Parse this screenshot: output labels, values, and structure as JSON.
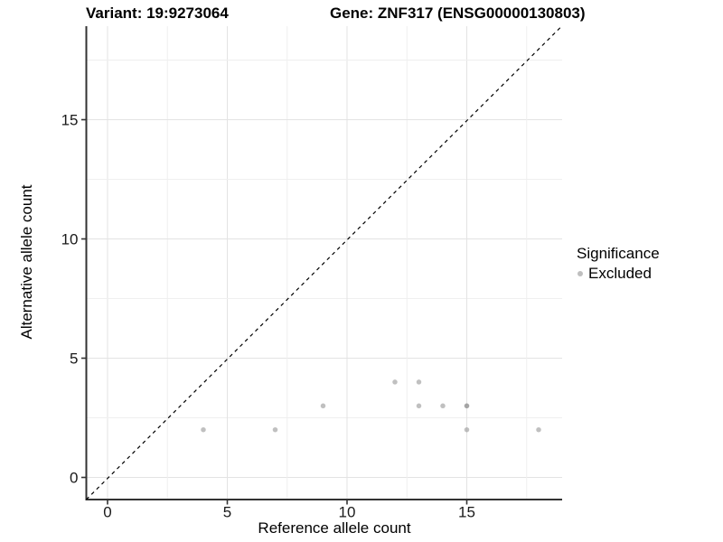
{
  "chart_data": {
    "type": "scatter",
    "titles": {
      "left": "Variant: 19:9273064",
      "right": "Gene: ZNF317 (ENSG00000130803)"
    },
    "xlabel": "Reference allele count",
    "ylabel": "Alternative allele count",
    "x_ticks": [
      0,
      5,
      10,
      15
    ],
    "y_ticks": [
      0,
      5,
      10,
      15
    ],
    "xlim": [
      -0.93,
      19.03
    ],
    "ylim": [
      -0.93,
      19.03
    ],
    "grid": {
      "on": true,
      "step": 2.5,
      "major_color": "#e3e3e3",
      "minor_color": "#efefef"
    },
    "reference_line": {
      "kind": "identity y=x",
      "style": "dashed",
      "color": "#000000"
    },
    "series": [
      {
        "name": "Excluded",
        "marker_color": "rgba(150,150,150,0.6)",
        "points": [
          [
            4,
            2
          ],
          [
            7,
            2
          ],
          [
            9,
            3
          ],
          [
            12,
            4
          ],
          [
            13,
            4
          ],
          [
            13,
            3
          ],
          [
            14,
            3
          ],
          [
            15,
            3
          ],
          [
            15,
            3
          ],
          [
            15,
            2
          ],
          [
            18,
            2
          ]
        ]
      }
    ],
    "legend": {
      "title": "Significance",
      "position": "right",
      "items": [
        {
          "label": "Excluded",
          "swatch_color": "#bfbfbf"
        }
      ]
    },
    "axis_color": "#333333",
    "tick_label_color": "#1a1a1a"
  }
}
